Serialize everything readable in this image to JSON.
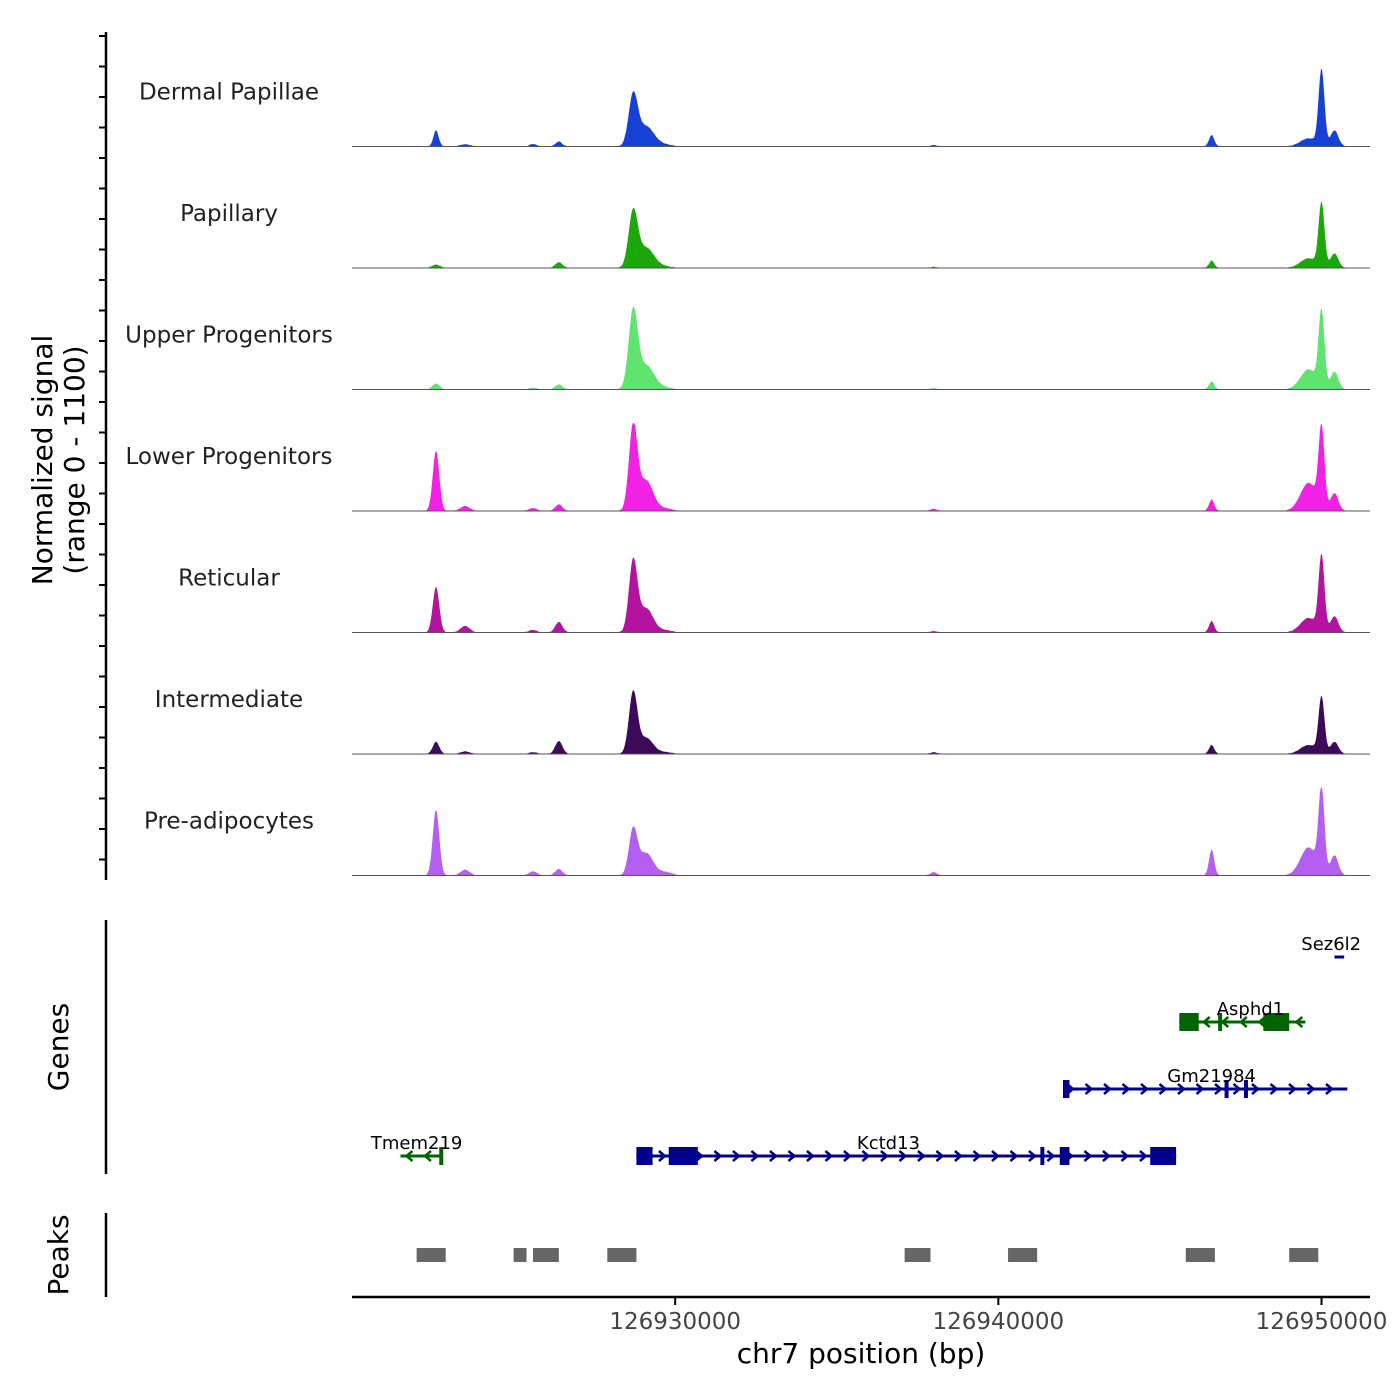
{
  "chart_data": {
    "type": "area",
    "title": "",
    "track_axis_label": [
      "Normalized signal",
      "(range 0 - 1100)"
    ],
    "genes_label": "Genes",
    "peaks_label": "Peaks",
    "xlabel": "chr7 position (bp)",
    "xlim": [
      126920000,
      126951500
    ],
    "ylim": [
      0,
      1100
    ],
    "xticks": [
      126930000,
      126940000,
      126950000
    ],
    "xtick_labels": [
      "126930000",
      "126940000",
      "126950000"
    ],
    "tracks": [
      {
        "name": "Dermal Papillae",
        "color": "#1740d6",
        "peaks": [
          [
            126922600,
            200,
            80
          ],
          [
            126923500,
            25,
            150
          ],
          [
            126925600,
            30,
            100
          ],
          [
            126926400,
            60,
            100
          ],
          [
            126928700,
            620,
            140
          ],
          [
            126929100,
            250,
            250
          ],
          [
            126929700,
            20,
            200
          ],
          [
            126938000,
            15,
            100
          ],
          [
            126946600,
            140,
            80
          ],
          [
            126949600,
            100,
            250
          ],
          [
            126950000,
            950,
            90
          ],
          [
            126950400,
            200,
            120
          ]
        ]
      },
      {
        "name": "Papillary",
        "color": "#1ca70a",
        "peaks": [
          [
            126922600,
            40,
            120
          ],
          [
            126926400,
            70,
            110
          ],
          [
            126928700,
            680,
            140
          ],
          [
            126929100,
            250,
            250
          ],
          [
            126929700,
            15,
            200
          ],
          [
            126938000,
            12,
            100
          ],
          [
            126946600,
            90,
            80
          ],
          [
            126949600,
            120,
            250
          ],
          [
            126950000,
            800,
            90
          ],
          [
            126950400,
            180,
            120
          ]
        ]
      },
      {
        "name": "Upper Progenitors",
        "color": "#5ee46f",
        "peaks": [
          [
            126922600,
            70,
            110
          ],
          [
            126925600,
            20,
            120
          ],
          [
            126926400,
            60,
            110
          ],
          [
            126928700,
            950,
            140
          ],
          [
            126929100,
            300,
            250
          ],
          [
            126929700,
            20,
            200
          ],
          [
            126938000,
            15,
            100
          ],
          [
            126946600,
            100,
            80
          ],
          [
            126949600,
            250,
            250
          ],
          [
            126950000,
            950,
            90
          ],
          [
            126950400,
            220,
            120
          ]
        ]
      },
      {
        "name": "Lower Progenitors",
        "color": "#f122e5",
        "peaks": [
          [
            126922600,
            750,
            100
          ],
          [
            126923500,
            60,
            140
          ],
          [
            126925600,
            35,
            120
          ],
          [
            126926400,
            80,
            110
          ],
          [
            126928700,
            1050,
            130
          ],
          [
            126929100,
            380,
            220
          ],
          [
            126929700,
            30,
            200
          ],
          [
            126938000,
            25,
            100
          ],
          [
            126946600,
            140,
            80
          ],
          [
            126949600,
            350,
            250
          ],
          [
            126950000,
            1000,
            90
          ],
          [
            126950400,
            220,
            120
          ]
        ]
      },
      {
        "name": "Reticular",
        "color": "#b4139f",
        "peaks": [
          [
            126922600,
            570,
            100
          ],
          [
            126923500,
            80,
            140
          ],
          [
            126925600,
            30,
            120
          ],
          [
            126926400,
            130,
            110
          ],
          [
            126928700,
            880,
            130
          ],
          [
            126929100,
            300,
            220
          ],
          [
            126929700,
            25,
            200
          ],
          [
            126938000,
            15,
            100
          ],
          [
            126946600,
            140,
            80
          ],
          [
            126949600,
            180,
            250
          ],
          [
            126950000,
            940,
            90
          ],
          [
            126950400,
            200,
            120
          ]
        ]
      },
      {
        "name": "Intermediate",
        "color": "#3b0b5a",
        "peaks": [
          [
            126922600,
            150,
            100
          ],
          [
            126923500,
            30,
            140
          ],
          [
            126925600,
            20,
            120
          ],
          [
            126926400,
            160,
            110
          ],
          [
            126928700,
            760,
            130
          ],
          [
            126929100,
            200,
            220
          ],
          [
            126929700,
            20,
            200
          ],
          [
            126938000,
            20,
            100
          ],
          [
            126946600,
            110,
            80
          ],
          [
            126949600,
            110,
            250
          ],
          [
            126950000,
            700,
            90
          ],
          [
            126950400,
            150,
            120
          ]
        ]
      },
      {
        "name": "Pre-adipocytes",
        "color": "#b55ef2",
        "peaks": [
          [
            126922600,
            820,
            100
          ],
          [
            126923500,
            70,
            140
          ],
          [
            126925600,
            50,
            120
          ],
          [
            126926400,
            80,
            110
          ],
          [
            126928700,
            560,
            130
          ],
          [
            126929100,
            280,
            220
          ],
          [
            126929700,
            40,
            200
          ],
          [
            126938000,
            40,
            100
          ],
          [
            126946600,
            320,
            80
          ],
          [
            126949600,
            350,
            250
          ],
          [
            126950000,
            1050,
            90
          ],
          [
            126950400,
            250,
            120
          ]
        ]
      }
    ],
    "genes": [
      {
        "name": "Sez6l2",
        "strand": "+",
        "start": 126950400,
        "end": 126950700,
        "row": 4,
        "color": "#00008b",
        "exons": [],
        "label_x": 126950300
      },
      {
        "name": "Asphd1",
        "strand": "-",
        "start": 126945600,
        "end": 126949500,
        "row": 3,
        "color": "#006400",
        "exons": [
          [
            126945600,
            126946200
          ],
          [
            126946800,
            126946900
          ],
          [
            126948200,
            126949000
          ]
        ],
        "label_x": 126947800
      },
      {
        "name": "Gm21984",
        "strand": "+",
        "start": 126942000,
        "end": 126950800,
        "row": 2,
        "color": "#00008b",
        "exons": [
          [
            126942000,
            126942200
          ],
          [
            126947000,
            126947100
          ],
          [
            126947600,
            126947700
          ]
        ],
        "label_x": 126946600
      },
      {
        "name": "Tmem219",
        "strand": "-",
        "start": 126921500,
        "end": 126922800,
        "row": 1,
        "color": "#006400",
        "exons": [
          [
            126922700,
            126922800
          ]
        ],
        "label_x": 126922000
      },
      {
        "name": "Kctd13",
        "strand": "+",
        "start": 126928800,
        "end": 126945500,
        "row": 1,
        "color": "#00008b",
        "exons": [
          [
            126928800,
            126929300
          ],
          [
            126929800,
            126930700
          ],
          [
            126941300,
            126941400
          ],
          [
            126941900,
            126942200
          ],
          [
            126944700,
            126945500
          ]
        ],
        "label_x": 126936600
      }
    ],
    "peaks": [
      {
        "start": 126922000,
        "end": 126922900
      },
      {
        "start": 126925000,
        "end": 126925400
      },
      {
        "start": 126925600,
        "end": 126926400
      },
      {
        "start": 126927900,
        "end": 126928800
      },
      {
        "start": 126937100,
        "end": 126937900
      },
      {
        "start": 126940300,
        "end": 126941200
      },
      {
        "start": 126945800,
        "end": 126946700
      },
      {
        "start": 126949000,
        "end": 126949900
      }
    ]
  }
}
